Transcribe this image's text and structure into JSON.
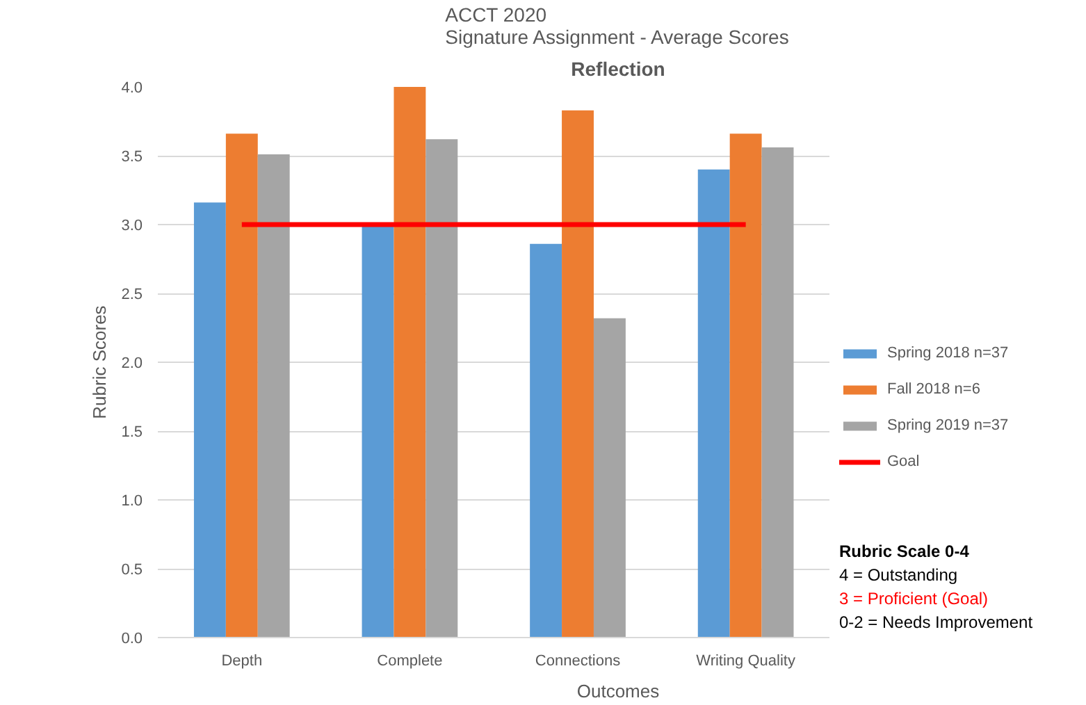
{
  "chart_data": {
    "type": "bar",
    "title": "ACCT 2020\nSignature Assignment - Average Scores",
    "subtitle": "Reflection",
    "xlabel": "Outcomes",
    "ylabel": "Rubric Scores",
    "categories": [
      "Depth",
      "Complete",
      "Connections",
      "Writing Quality"
    ],
    "series": [
      {
        "name": "Spring 2018 n=37",
        "color": "#5b9bd5",
        "values": [
          3.16,
          3.0,
          2.86,
          3.4
        ]
      },
      {
        "name": "Fall 2018 n=6",
        "color": "#ed7d31",
        "values": [
          3.66,
          4.0,
          3.83,
          3.66
        ]
      },
      {
        "name": "Spring 2019 n=37",
        "color": "#a5a5a5",
        "values": [
          3.51,
          3.62,
          2.32,
          3.56
        ]
      },
      {
        "name": "Goal",
        "color": "#ff0000",
        "type": "line",
        "values": [
          3,
          3,
          3,
          3
        ]
      }
    ],
    "ylim": [
      0,
      4
    ],
    "yticks": [
      "0.0",
      0.5,
      "1.0",
      1.5,
      "2.0",
      2.5,
      "3.0",
      3.5,
      "4.0"
    ],
    "grid": "y",
    "legend": "right",
    "marker": "none",
    "annotations": [
      "Rubric Scale 0-4",
      "4 = Outstanding",
      "3 = Proficient (Goal)",
      "0-2 = Needs Improvement"
    ]
  }
}
